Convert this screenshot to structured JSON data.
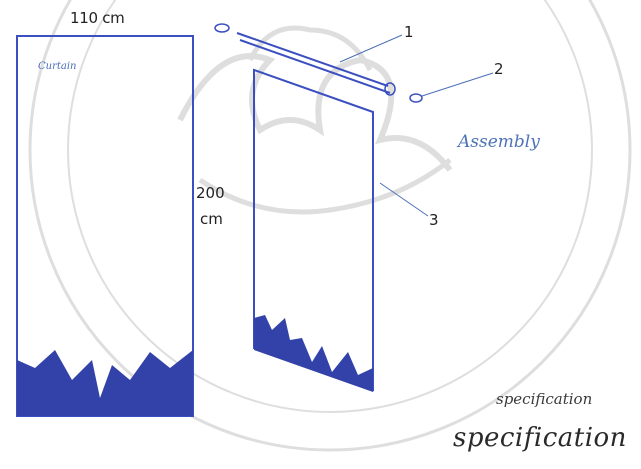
{
  "diagram": {
    "width_label": "110 cm",
    "height_label_value": "200",
    "height_label_unit": "cm",
    "curtain_label": "Curtain",
    "assembly_label": "Assembly",
    "callouts": {
      "one": "1",
      "two": "2",
      "three": "3"
    },
    "spec_small": "specification",
    "spec_large": "specification",
    "colors": {
      "outline": "#3b4fc0",
      "fill": "#3342a8",
      "rod": "#3b4fc0",
      "leader": "#4a6fb8",
      "watermark": "#d9d9d9"
    },
    "watermark_icon": "university-seal-watermark"
  }
}
